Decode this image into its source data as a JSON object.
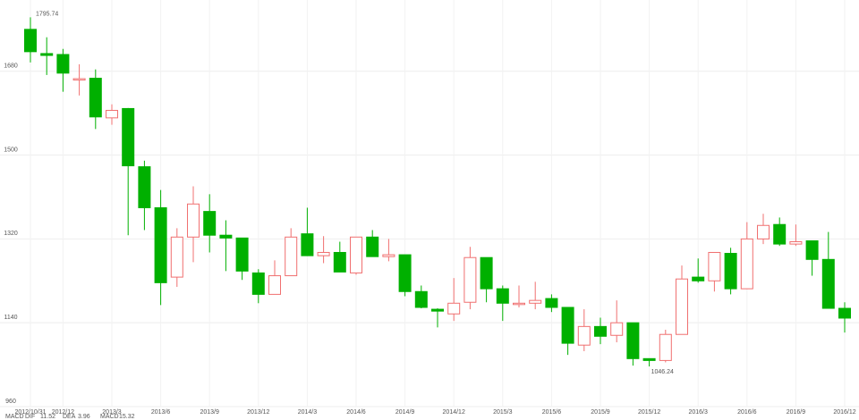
{
  "chart_data": {
    "type": "candlestick",
    "categories": [
      "2012/10/31",
      null,
      "2012/12",
      null,
      null,
      "2013/3",
      null,
      null,
      "2013/6",
      null,
      null,
      "2013/9",
      null,
      null,
      "2013/12",
      null,
      null,
      "2014/3",
      null,
      null,
      "2014/6",
      null,
      null,
      "2014/9",
      null,
      null,
      "2014/12",
      null,
      null,
      "2015/3",
      null,
      null,
      "2015/6",
      null,
      null,
      "2015/9",
      null,
      null,
      "2015/12",
      null,
      null,
      "2016/3",
      null,
      null,
      "2016/6",
      null,
      null,
      "2016/9",
      null,
      null,
      "2016/12"
    ],
    "open": [
      1770,
      1718,
      1716,
      1662,
      1665,
      1580,
      1600,
      1475,
      1387,
      1238,
      1324,
      1379,
      1328,
      1322,
      1247,
      1201,
      1241,
      1331,
      1284,
      1291,
      1247,
      1324,
      1282,
      1286,
      1207,
      1169,
      1159,
      1184,
      1280,
      1213,
      1180,
      1182,
      1192,
      1173,
      1092,
      1132,
      1113,
      1140,
      1063,
      1059,
      1115,
      1238,
      1230,
      1289,
      1213,
      1320,
      1351,
      1309,
      1316,
      1276,
      1171
    ],
    "close": [
      1722,
      1714,
      1676,
      1664,
      1582,
      1596,
      1477,
      1387,
      1226,
      1324,
      1395,
      1328,
      1322,
      1251,
      1201,
      1241,
      1324,
      1284,
      1291,
      1249,
      1324,
      1282,
      1286,
      1207,
      1173,
      1165,
      1182,
      1280,
      1213,
      1182,
      1182,
      1188,
      1173,
      1096,
      1132,
      1111,
      1140,
      1063,
      1059,
      1115,
      1234,
      1230,
      1291,
      1213,
      1320,
      1349,
      1309,
      1314,
      1276,
      1171,
      1150
    ],
    "high": [
      1795.74,
      1753,
      1728,
      1695,
      1684,
      1609,
      1601,
      1488,
      1425,
      1343,
      1433,
      1416,
      1360,
      1322,
      1255,
      1274,
      1343,
      1387,
      1326,
      1314,
      1324,
      1339,
      1320,
      1286,
      1220,
      1171,
      1236,
      1303,
      1280,
      1220,
      1220,
      1228,
      1201,
      1173,
      1169,
      1151,
      1188,
      1140,
      1063,
      1125,
      1263,
      1278,
      1291,
      1301,
      1356,
      1374,
      1366,
      1351,
      1316,
      1335,
      1184
    ],
    "low": [
      1699,
      1672,
      1636,
      1628,
      1556,
      1565,
      1328,
      1339,
      1178,
      1217,
      1270,
      1291,
      1251,
      1232,
      1182,
      1201,
      1241,
      1284,
      1268,
      1249,
      1243,
      1282,
      1272,
      1197,
      1171,
      1130,
      1144,
      1169,
      1184,
      1144,
      1173,
      1169,
      1163,
      1071,
      1079,
      1094,
      1098,
      1048,
      1046.24,
      1055,
      1115,
      1226,
      1207,
      1201,
      1213,
      1309,
      1305,
      1305,
      1241,
      1171,
      1119
    ],
    "up_color": "#f07070",
    "down_color": "#00b000",
    "ylim": [
      960,
      1833
    ],
    "yticks": [
      960,
      1140,
      1320,
      1500,
      1680
    ],
    "grid": true,
    "indicator_title": "MACD",
    "indicators": [
      {
        "name": "DIF",
        "value": 11.52,
        "color": "#3ba8e0"
      },
      {
        "name": "DEA",
        "value": 3.96,
        "color": "#d020c0"
      },
      {
        "name": "MACD",
        "value": 15.32,
        "color": "#e03030"
      }
    ]
  }
}
